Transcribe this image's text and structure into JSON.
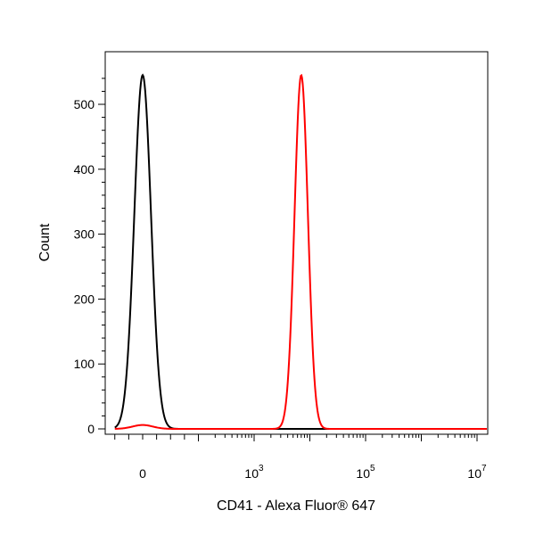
{
  "chart_data": {
    "type": "line",
    "title": "",
    "xlabel": "CD41 - Alexa Fluor® 647",
    "ylabel": "Count",
    "x_scale": "biexponential",
    "xlim": [
      -500,
      15000000
    ],
    "ylim": [
      -10,
      575
    ],
    "y_ticks": [
      0,
      100,
      200,
      300,
      400,
      500
    ],
    "y_tick_labels": [
      "0",
      "100",
      "200",
      "300",
      "400",
      "500"
    ],
    "x_tick_labels": [
      {
        "value": 0,
        "base": "0",
        "exp": ""
      },
      {
        "value": 1000,
        "base": "10",
        "exp": "3"
      },
      {
        "value": 100000,
        "base": "10",
        "exp": "5"
      },
      {
        "value": 10000000,
        "base": "10",
        "exp": "7"
      }
    ],
    "grid": false,
    "legend": "none",
    "series": [
      {
        "color": "#000000",
        "shape": "gaussian",
        "center": 0,
        "spread": 0.15,
        "peak": 545
      },
      {
        "color": "#ff0000",
        "shape": "gaussian",
        "center": 7000,
        "spread": 0.12,
        "peak": 545,
        "baseline_bump": {
          "center": 0,
          "height": 6
        }
      }
    ]
  }
}
